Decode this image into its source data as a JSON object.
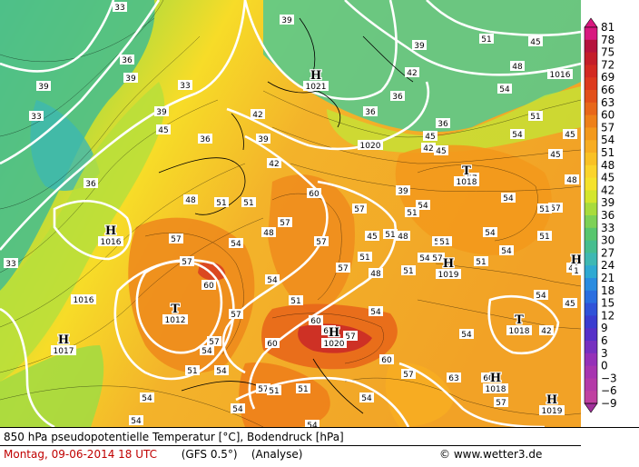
{
  "legend": {
    "values": [
      "81",
      "78",
      "75",
      "72",
      "69",
      "66",
      "63",
      "60",
      "57",
      "54",
      "51",
      "48",
      "45",
      "42",
      "39",
      "36",
      "33",
      "30",
      "27",
      "24",
      "21",
      "18",
      "15",
      "12",
      "9",
      "6",
      "3",
      "0",
      "−3",
      "−6",
      "−9"
    ],
    "colors": [
      "#d8197f",
      "#b5143d",
      "#c41e2a",
      "#d32a22",
      "#dd3a1e",
      "#e24f1a",
      "#e8671a",
      "#ee8019",
      "#f3991c",
      "#f7ad22",
      "#f9c124",
      "#fbd42a",
      "#f5e22a",
      "#d4e62c",
      "#a8dc3c",
      "#7dd156",
      "#58c66e",
      "#46be8f",
      "#3eb8b3",
      "#2fa9d2",
      "#2a8ce0",
      "#2a6ee0",
      "#3052d8",
      "#3a3cd0",
      "#5630c8",
      "#7630c0",
      "#9530b8",
      "#a734b0",
      "#b43aa8",
      "#c041a1",
      "#a0309a"
    ]
  },
  "map": {
    "pressure_labels": [
      {
        "kind": "H",
        "value": "1021"
      },
      {
        "kind": "H",
        "value": "1016"
      },
      {
        "kind": "T",
        "value": "1012"
      },
      {
        "kind": "H",
        "value": "1017"
      },
      {
        "kind": "T",
        "value": "1018"
      },
      {
        "kind": "H",
        "value": "1019"
      },
      {
        "kind": "H",
        "value": "1020"
      },
      {
        "kind": "T",
        "value": "1018"
      },
      {
        "kind": "H",
        "value": "1018"
      },
      {
        "kind": "H",
        "value": "1019"
      },
      {
        "kind": "H",
        "value": "1"
      },
      {
        "kind": "",
        "value": "1020"
      },
      {
        "kind": "",
        "value": "1016"
      },
      {
        "kind": "",
        "value": "1016"
      }
    ],
    "temp_labels": [
      "33",
      "39",
      "33",
      "33",
      "36",
      "39",
      "33",
      "36",
      "39",
      "36",
      "39",
      "42",
      "39",
      "42",
      "36",
      "42",
      "45",
      "36",
      "39",
      "45",
      "36",
      "42",
      "45",
      "39",
      "48",
      "51",
      "51",
      "48",
      "57",
      "54",
      "60",
      "57",
      "51",
      "54",
      "57",
      "57",
      "60",
      "57",
      "54",
      "51",
      "57",
      "51",
      "48",
      "57",
      "54",
      "57",
      "60",
      "57",
      "54",
      "51",
      "54",
      "60",
      "63",
      "57",
      "54",
      "51",
      "54",
      "57",
      "51",
      "54",
      "54",
      "51",
      "48",
      "45",
      "42",
      "54",
      "57",
      "60",
      "63",
      "57",
      "60",
      "54",
      "51",
      "57",
      "54",
      "51",
      "48",
      "45",
      "54",
      "51",
      "45",
      "54",
      "48",
      "45",
      "51",
      "54",
      "51",
      "48",
      "45",
      "51",
      "54",
      "54",
      "57",
      "51",
      "54",
      "54"
    ]
  },
  "footer": {
    "line1": "850 hPa pseudopotentielle Temperatur [°C], Bodendruck [hPa]",
    "date": "Montag, 09-06-2014  18 UTC",
    "model": "(GFS 0.5°)",
    "analysis": "(Analyse)",
    "copyright": "© www.wetter3.de"
  }
}
